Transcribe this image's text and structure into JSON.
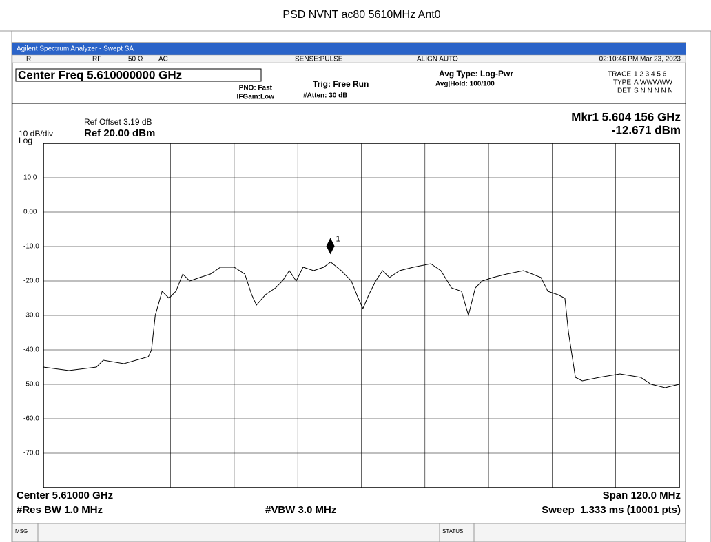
{
  "header": {
    "title": "PSD NVNT ac80 5610MHz Ant0"
  },
  "window": {
    "title": "Agilent Spectrum Analyzer - Swept SA",
    "status_bar": {
      "input": "R",
      "rf": "RF",
      "impedance": "50 Ω",
      "coupling": "AC",
      "sense": "SENSE:PULSE",
      "align": "ALIGN AUTO",
      "time": "02:10:46 PM Mar 23, 2023"
    },
    "center_freq": "Center Freq 5.610000000 GHz",
    "pno": "PNO: Fast",
    "ifgain": "IFGain:Low",
    "trig": "Trig: Free Run",
    "atten": "#Atten: 30 dB",
    "avg_type": "Avg Type: Log-Pwr",
    "avg_hold": "Avg|Hold: 100/100",
    "trace_table": {
      "trace_label": "TRACE",
      "trace": "1 2 3 4 5 6",
      "type_label": "TYPE",
      "type": "A WWWWW",
      "det_label": "DET",
      "det": "S N N N N N"
    },
    "ref_offset": "Ref Offset 3.19 dB",
    "scale": "10 dB/div",
    "scale_type": "Log",
    "ref_level": "Ref 20.00 dBm",
    "footer": {
      "center": "Center 5.61000 GHz",
      "rbw": "#Res BW 1.0 MHz",
      "vbw": "#VBW 3.0 MHz",
      "span": "Span 120.0 MHz",
      "sweep": "Sweep  1.333 ms (10001 pts)"
    },
    "msg": "MSG",
    "status": "STATUS"
  },
  "chart_data": {
    "type": "line",
    "color": "#000000",
    "xlim": [
      5.55,
      5.67
    ],
    "ylim": [
      -80,
      20
    ],
    "yticks": [
      {
        "value": 10,
        "label": "10.0"
      },
      {
        "value": 0,
        "label": "0.00"
      },
      {
        "value": -10,
        "label": "-10.0"
      },
      {
        "value": -20,
        "label": "-20.0"
      },
      {
        "value": -30,
        "label": "-30.0"
      },
      {
        "value": -40,
        "label": "-40.0"
      },
      {
        "value": -50,
        "label": "-50.0"
      },
      {
        "value": -60,
        "label": "-60.0"
      },
      {
        "value": -70,
        "label": "-70.0"
      }
    ],
    "grid": true,
    "x": [
      5.55,
      5.5548,
      5.56,
      5.5613,
      5.5652,
      5.5698,
      5.5704,
      5.5711,
      5.5724,
      5.5737,
      5.575,
      5.5763,
      5.5776,
      5.5795,
      5.5815,
      5.5834,
      5.586,
      5.588,
      5.5893,
      5.5902,
      5.5919,
      5.5938,
      5.5951,
      5.5964,
      5.5977,
      5.599,
      5.601,
      5.6029,
      5.6042,
      5.6062,
      5.6081,
      5.6094,
      5.6103,
      5.6114,
      5.6127,
      5.614,
      5.6153,
      5.6172,
      5.6198,
      5.6231,
      5.625,
      5.627,
      5.6289,
      5.6302,
      5.6315,
      5.6328,
      5.6348,
      5.6374,
      5.6406,
      5.6439,
      5.6452,
      5.6471,
      5.6484,
      5.6491,
      5.6504,
      5.6517,
      5.6549,
      5.6588,
      5.6627,
      5.6647,
      5.6673,
      5.67
    ],
    "values": [
      -45,
      -46,
      -45,
      -43,
      -44,
      -42,
      -40,
      -30,
      -23,
      -25,
      -23,
      -18,
      -20,
      -19,
      -18,
      -16,
      -16,
      -18,
      -24,
      -27,
      -24,
      -22,
      -20,
      -17,
      -20,
      -16,
      -17,
      -16,
      -14.5,
      -17,
      -20,
      -25,
      -28,
      -24,
      -20,
      -17,
      -19,
      -17,
      -16,
      -15,
      -17,
      -22,
      -23,
      -30,
      -22,
      -20,
      -19,
      -18,
      -17,
      -19,
      -23,
      -24,
      -25,
      -35,
      -48,
      -49,
      -48,
      -47,
      -48,
      -50,
      -51,
      -50
    ],
    "marker": {
      "label": "1",
      "x": 5.604156,
      "value": -12.671,
      "readout_freq": "Mkr1 5.604 156 GHz",
      "readout_level": "-12.671 dBm"
    }
  }
}
